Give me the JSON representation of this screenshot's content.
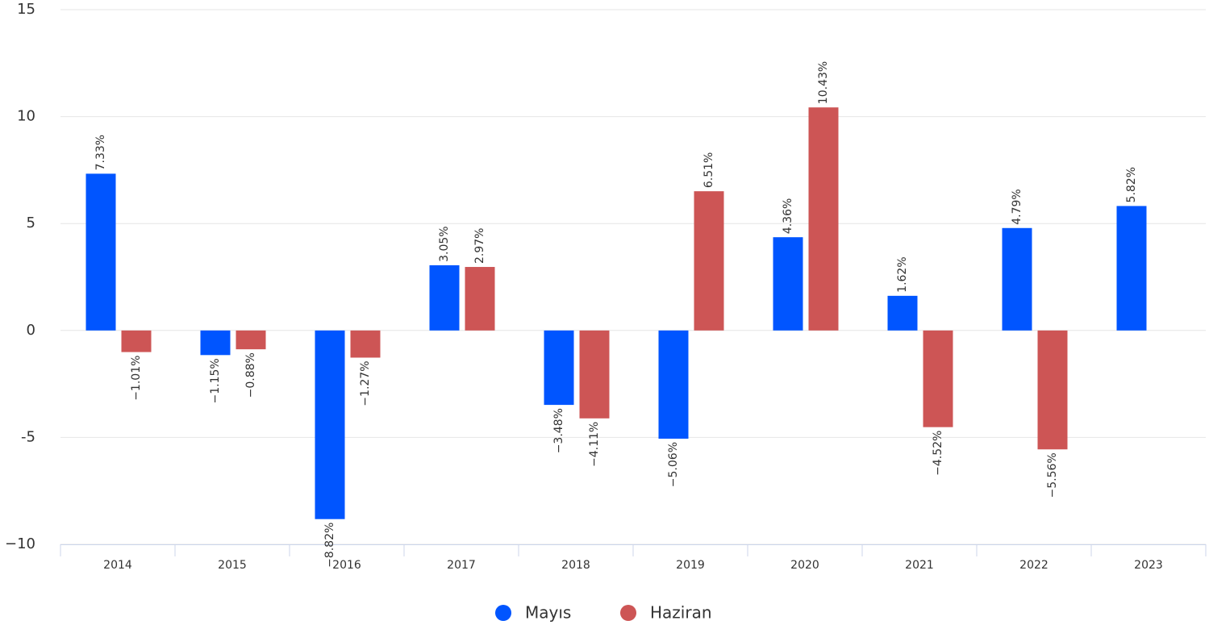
{
  "chart_data": {
    "type": "bar",
    "categories": [
      "2014",
      "2015",
      "2016",
      "2017",
      "2018",
      "2019",
      "2020",
      "2021",
      "2022",
      "2023"
    ],
    "series": [
      {
        "name": "Mayıs",
        "color": "#0055ff",
        "values": [
          7.33,
          -1.15,
          -8.82,
          3.05,
          -3.48,
          -5.06,
          4.36,
          1.62,
          4.79,
          5.82
        ],
        "value_labels": [
          "7.33%",
          "−1.15%",
          "−8.82%",
          "3.05%",
          "−3.48%",
          "−5.06%",
          "4.36%",
          "1.62%",
          "4.79%",
          "5.82%"
        ]
      },
      {
        "name": "Haziran",
        "color": "#cd5555",
        "values": [
          -1.01,
          -0.88,
          -1.27,
          2.97,
          -4.11,
          6.51,
          10.43,
          -4.52,
          -5.56,
          null
        ],
        "value_labels": [
          "−1.01%",
          "−0.88%",
          "−1.27%",
          "2.97%",
          "−4.11%",
          "6.51%",
          "10.43%",
          "−4.52%",
          "−5.56%",
          null
        ]
      }
    ],
    "ylim": [
      -10,
      15
    ],
    "yticks": [
      {
        "value": -10,
        "label": "−10"
      },
      -5,
      0,
      5,
      10,
      15
    ],
    "grid": true,
    "legend": "bottom"
  }
}
